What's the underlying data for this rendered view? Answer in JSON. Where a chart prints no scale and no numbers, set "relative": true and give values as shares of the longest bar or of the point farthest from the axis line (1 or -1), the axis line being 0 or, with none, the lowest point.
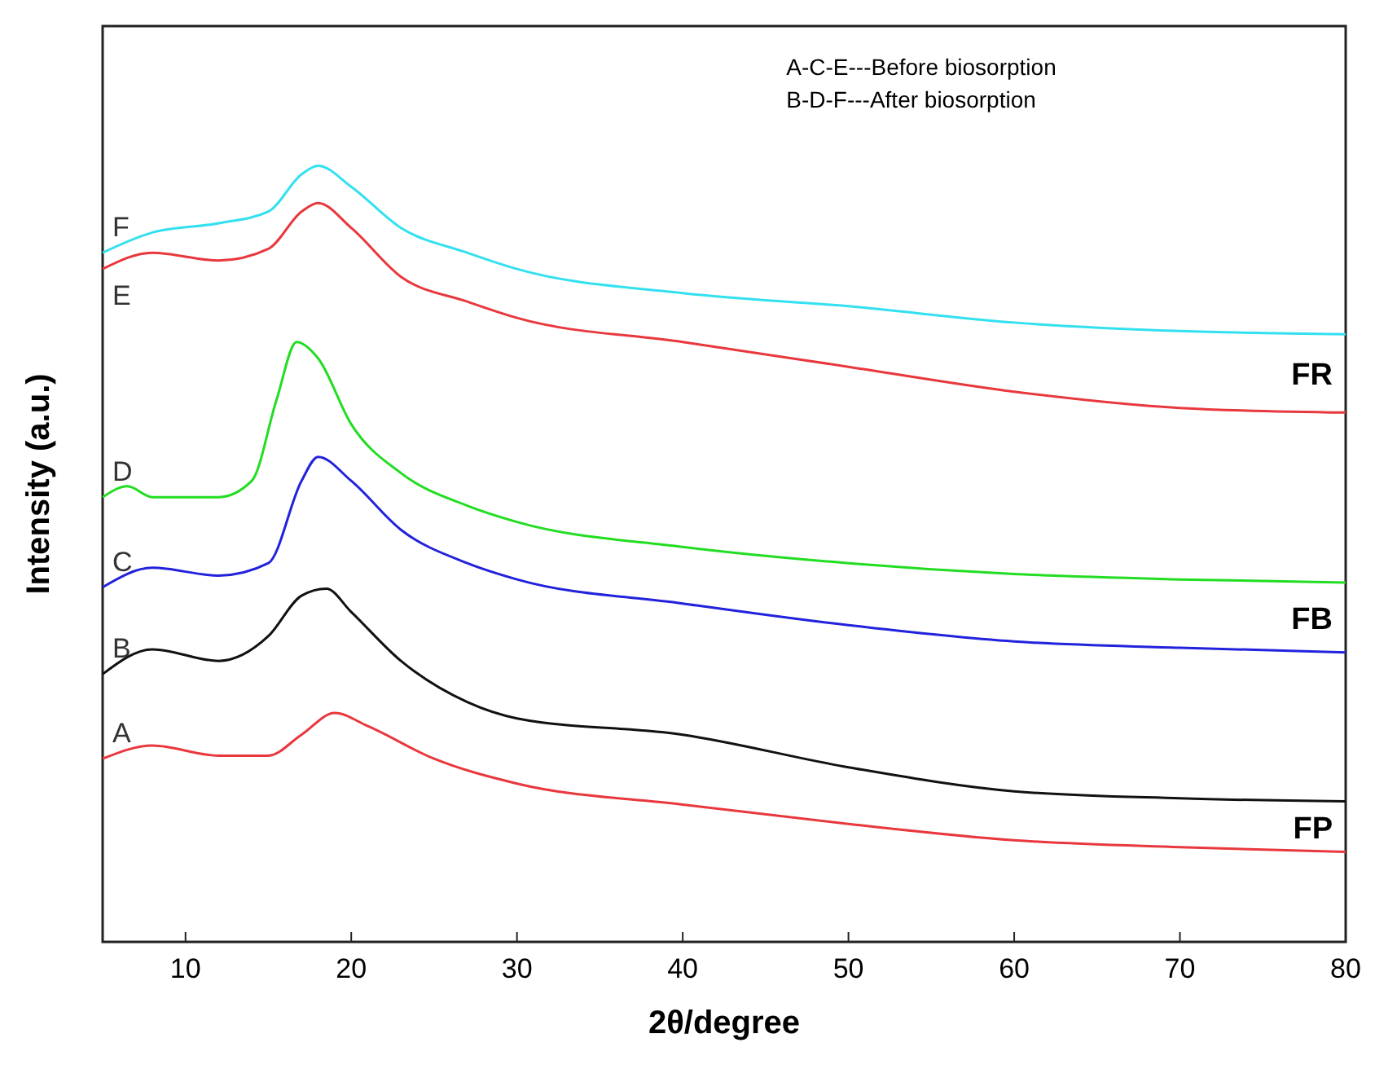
{
  "chart_data": {
    "type": "line",
    "relative": true,
    "xlabel": "2θ/degree",
    "ylabel": "Intensity (a.u.)",
    "xlim": [
      5,
      80
    ],
    "xticks": [
      10,
      20,
      30,
      40,
      50,
      60,
      70,
      80
    ],
    "grid": false,
    "legend": false,
    "marker": "none",
    "line_style": "solid",
    "annotations": [
      "A-C-E---Before biosorption",
      "B-D-F---After biosorption",
      "FR",
      "FB",
      "FP"
    ],
    "series": [
      {
        "name": "A",
        "color": "#e8383d",
        "x": [
          5,
          8,
          12,
          15,
          17,
          19,
          21,
          25,
          30,
          40,
          50,
          60,
          70,
          80
        ],
        "values": [
          0.236,
          0.253,
          0.24,
          0.24,
          0.267,
          0.295,
          0.278,
          0.236,
          0.204,
          0.177,
          0.152,
          0.131,
          0.122,
          0.116
        ]
      },
      {
        "name": "B",
        "color": "#111111",
        "x": [
          5,
          8,
          12,
          15,
          17,
          18.5,
          20,
          23,
          27,
          30,
          40,
          50,
          60,
          70,
          80
        ],
        "values": [
          0.345,
          0.377,
          0.362,
          0.394,
          0.446,
          0.455,
          0.425,
          0.362,
          0.309,
          0.288,
          0.267,
          0.225,
          0.194,
          0.185,
          0.181
        ]
      },
      {
        "name": "C",
        "color": "#2222dd",
        "x": [
          5,
          8,
          12,
          15,
          17,
          18,
          20,
          23,
          27,
          30,
          40,
          50,
          60,
          70,
          80
        ],
        "values": [
          0.457,
          0.482,
          0.472,
          0.488,
          0.594,
          0.625,
          0.594,
          0.531,
          0.488,
          0.467,
          0.436,
          0.408,
          0.387,
          0.379,
          0.373
        ]
      },
      {
        "name": "D",
        "color": "#22dd22",
        "x": [
          5,
          6.5,
          8,
          12,
          14,
          15.5,
          16.7,
          18,
          20,
          23,
          27,
          30,
          40,
          50,
          60,
          70,
          80
        ],
        "values": [
          0.573,
          0.587,
          0.573,
          0.573,
          0.594,
          0.699,
          0.773,
          0.752,
          0.667,
          0.604,
          0.562,
          0.541,
          0.509,
          0.488,
          0.474,
          0.467,
          0.463
        ]
      },
      {
        "name": "E",
        "color": "#e8383d",
        "x": [
          5,
          8,
          12,
          15,
          17,
          18,
          20,
          23,
          27,
          30,
          40,
          50,
          60,
          70,
          80
        ],
        "values": [
          0.867,
          0.888,
          0.878,
          0.893,
          0.941,
          0.952,
          0.92,
          0.857,
          0.825,
          0.804,
          0.773,
          0.741,
          0.709,
          0.688,
          0.682
        ]
      },
      {
        "name": "F",
        "color": "#33e0f0",
        "x": [
          5,
          8,
          12,
          15,
          17,
          18,
          20,
          23,
          27,
          30,
          40,
          50,
          60,
          70,
          80
        ],
        "values": [
          0.888,
          0.914,
          0.926,
          0.941,
          0.989,
          1,
          0.973,
          0.92,
          0.888,
          0.867,
          0.836,
          0.819,
          0.798,
          0.787,
          0.783
        ]
      }
    ]
  }
}
